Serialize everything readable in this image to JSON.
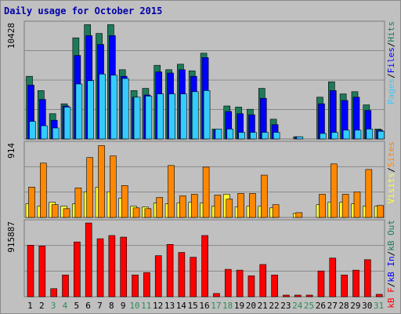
{
  "title": "Daily usage for October 2015",
  "colors": {
    "pages": "#33ccff",
    "files": "#0000ff",
    "hits": "#1e7b5a",
    "visits": "#ffff33",
    "sites": "#ff8800",
    "kb_in": "#0000ff",
    "kb_out": "#1e7b5a",
    "kb_f": "#ff0000",
    "day_normal": "#000000",
    "day_weekend": "#2e8b57"
  },
  "chart_data": [
    {
      "type": "bar",
      "panel": "hits-files-pages",
      "ylim": [
        0,
        10428
      ],
      "y_tick_label": "10428",
      "legend": [
        "Pages",
        "/",
        "Files",
        "/",
        "Hits"
      ],
      "categories": [
        "1",
        "2",
        "3",
        "4",
        "5",
        "6",
        "7",
        "8",
        "9",
        "10",
        "11",
        "12",
        "13",
        "14",
        "15",
        "16",
        "17",
        "18",
        "19",
        "20",
        "21",
        "22",
        "23",
        "24",
        "25",
        "26",
        "27",
        "28",
        "29",
        "30",
        "31"
      ],
      "series": [
        {
          "name": "Hits",
          "values": [
            5700,
            4400,
            2300,
            3200,
            9200,
            10400,
            9600,
            10400,
            6300,
            4400,
            4600,
            6700,
            6300,
            6800,
            6200,
            7800,
            900,
            3000,
            2900,
            2700,
            4600,
            1800,
            0,
            200,
            0,
            3800,
            5200,
            4100,
            4300,
            3100,
            900
          ]
        },
        {
          "name": "Files",
          "values": [
            4900,
            3600,
            1700,
            3000,
            7600,
            9400,
            8600,
            9400,
            5700,
            3800,
            4000,
            6100,
            6000,
            6300,
            5700,
            7400,
            800,
            2500,
            2300,
            2200,
            3700,
            1300,
            0,
            200,
            0,
            3200,
            4400,
            3500,
            3800,
            2600,
            800
          ]
        },
        {
          "name": "Pages",
          "values": [
            1600,
            1200,
            1000,
            2900,
            5000,
            5300,
            5900,
            5800,
            5500,
            3800,
            3900,
            4100,
            4100,
            4100,
            4300,
            4400,
            900,
            900,
            600,
            600,
            600,
            600,
            0,
            200,
            0,
            500,
            600,
            800,
            800,
            900,
            700
          ]
        }
      ]
    },
    {
      "type": "bar",
      "panel": "sites-visits",
      "ylim": [
        0,
        914
      ],
      "y_tick_label": "914",
      "legend": [
        "Visits",
        "/",
        "Sites"
      ],
      "categories": [
        "1",
        "2",
        "3",
        "4",
        "5",
        "6",
        "7",
        "8",
        "9",
        "10",
        "11",
        "12",
        "13",
        "14",
        "15",
        "16",
        "17",
        "18",
        "19",
        "20",
        "21",
        "22",
        "23",
        "24",
        "25",
        "26",
        "27",
        "28",
        "29",
        "30",
        "31"
      ],
      "series": [
        {
          "name": "Visits",
          "values": [
            170,
            140,
            190,
            140,
            170,
            320,
            380,
            320,
            240,
            140,
            130,
            180,
            170,
            180,
            190,
            180,
            140,
            290,
            130,
            140,
            140,
            120,
            0,
            50,
            0,
            160,
            190,
            190,
            170,
            140,
            140
          ]
        },
        {
          "name": "Sites",
          "values": [
            380,
            680,
            160,
            110,
            370,
            750,
            900,
            770,
            400,
            120,
            110,
            250,
            650,
            270,
            290,
            630,
            280,
            230,
            300,
            300,
            530,
            160,
            0,
            60,
            0,
            290,
            670,
            290,
            320,
            600,
            150
          ]
        }
      ]
    },
    {
      "type": "bar",
      "panel": "kb",
      "ylim": [
        0,
        915887
      ],
      "y_tick_label": "915887",
      "legend": [
        "kB F",
        "/",
        "kB In",
        "/",
        "kB Out"
      ],
      "categories": [
        "1",
        "2",
        "3",
        "4",
        "5",
        "6",
        "7",
        "8",
        "9",
        "10",
        "11",
        "12",
        "13",
        "14",
        "15",
        "16",
        "17",
        "18",
        "19",
        "20",
        "21",
        "22",
        "23",
        "24",
        "25",
        "26",
        "27",
        "28",
        "29",
        "30",
        "31"
      ],
      "series": [
        {
          "name": "kB F",
          "values": [
            640000,
            630000,
            100000,
            270000,
            680000,
            915887,
            720000,
            760000,
            740000,
            270000,
            300000,
            510000,
            650000,
            550000,
            490000,
            760000,
            40000,
            340000,
            330000,
            260000,
            400000,
            270000,
            20000,
            20000,
            20000,
            320000,
            480000,
            270000,
            330000,
            460000,
            30000
          ]
        }
      ]
    }
  ],
  "day_labels": [
    "1",
    "2",
    "3",
    "4",
    "5",
    "6",
    "7",
    "8",
    "9",
    "10",
    "11",
    "12",
    "13",
    "14",
    "15",
    "16",
    "17",
    "18",
    "19",
    "20",
    "21",
    "22",
    "23",
    "24",
    "25",
    "26",
    "27",
    "28",
    "29",
    "30",
    "31"
  ],
  "weekend_days": [
    "3",
    "4",
    "10",
    "11",
    "17",
    "18",
    "24",
    "25",
    "31"
  ]
}
